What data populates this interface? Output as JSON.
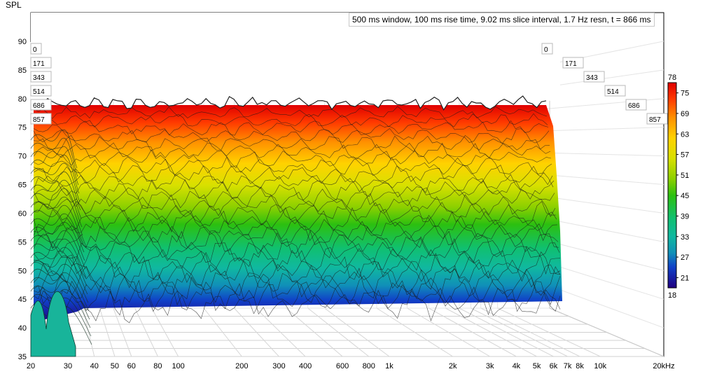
{
  "chart_data": {
    "type": "area",
    "title": "500 ms window, 100 ms rise time, 9.02 ms slice interval, 1.7 Hz resn, t = 866 ms",
    "ylabel": "SPL",
    "xlabel_unit": "kHz",
    "ylim": [
      35,
      95
    ],
    "y_ticks": [
      35,
      40,
      45,
      50,
      55,
      60,
      65,
      70,
      75,
      80,
      85,
      90
    ],
    "x_log": true,
    "xlim": [
      20,
      20000
    ],
    "x_ticks": [
      20,
      30,
      40,
      50,
      60,
      80,
      100,
      200,
      300,
      400,
      600,
      800,
      1000,
      2000,
      3000,
      4000,
      5000,
      6000,
      7000,
      8000,
      10000,
      20000
    ],
    "x_tick_labels": [
      "20",
      "30",
      "40",
      "50",
      "60",
      "80",
      "100",
      "200",
      "300",
      "400",
      "600",
      "800",
      "1k",
      "2k",
      "3k",
      "4k",
      "5k",
      "6k",
      "7k",
      "8k",
      "10k",
      "20kHz"
    ],
    "time_slices_ms": [
      "0",
      "171",
      "343",
      "514",
      "686",
      "857"
    ],
    "colorbar": {
      "min": 18,
      "max": 78,
      "ticks": [
        "75",
        "69",
        "63",
        "57",
        "51",
        "45",
        "39",
        "33",
        "27",
        "21"
      ],
      "top_label": "78",
      "bottom_label": "18"
    },
    "series": [
      {
        "slice_ms": 0,
        "level_db": 79
      },
      {
        "slice_ms": 171,
        "level_db": 72
      },
      {
        "slice_ms": 343,
        "level_db": 66
      },
      {
        "slice_ms": 514,
        "level_db": 59
      },
      {
        "slice_ms": 686,
        "level_db": 53
      },
      {
        "slice_ms": 857,
        "level_db": 46
      }
    ]
  }
}
